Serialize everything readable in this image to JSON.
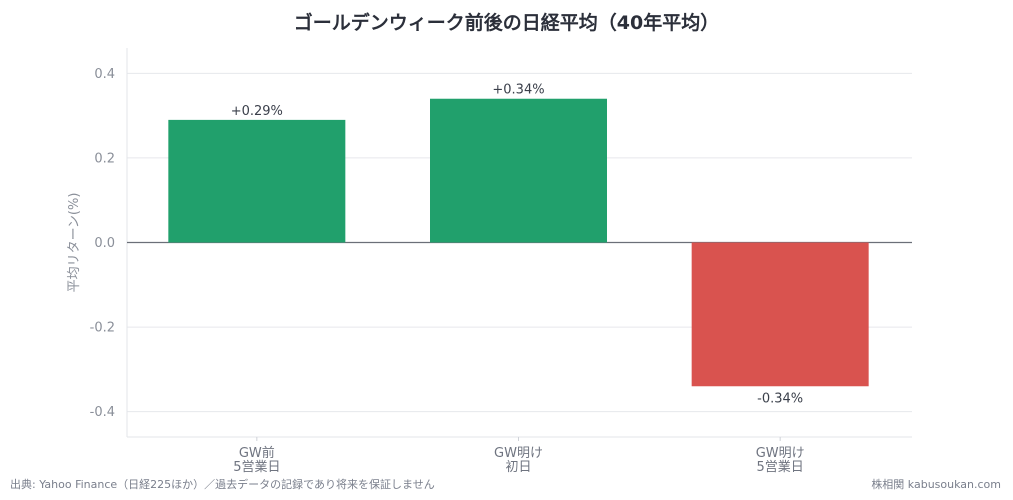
{
  "chart_data": {
    "type": "bar",
    "title": "ゴールデンウィーク前後の日経平均（40年平均）",
    "ylabel": "平均リターン(%)",
    "xlabel": "",
    "ylim": [
      -0.46,
      0.46
    ],
    "yticks": [
      0.4,
      0.2,
      0.0,
      -0.2,
      -0.4
    ],
    "ytick_labels": [
      "0.4",
      "0.2",
      "0.0",
      "-0.2",
      "-0.4"
    ],
    "categories": [
      [
        "GW前",
        "5営業日"
      ],
      [
        "GW明け",
        "初日"
      ],
      [
        "GW明け",
        "5営業日"
      ]
    ],
    "values": [
      0.29,
      0.34,
      -0.34
    ],
    "value_labels": [
      "+0.29%",
      "+0.34%",
      "-0.34%"
    ],
    "colors": [
      "#21a06c",
      "#21a06c",
      "#d9534f"
    ],
    "grid": true,
    "zero_line": true
  },
  "footer": {
    "source": "出典: Yahoo Finance（日経225ほか）／過去データの記録であり将来を保証しません",
    "credit": "株相関 kabusoukan.com"
  }
}
